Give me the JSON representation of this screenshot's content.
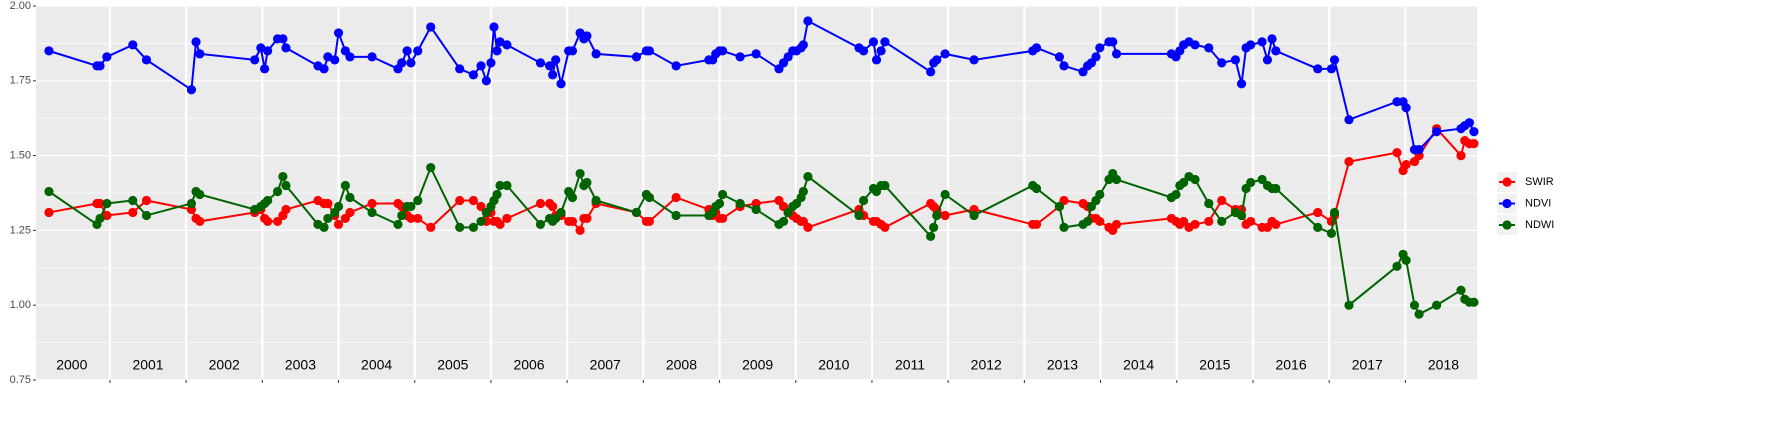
{
  "chart_data": {
    "type": "line",
    "x": [
      2000.2,
      2000.83,
      2000.87,
      2000.96,
      2001.3,
      2001.48,
      2002.07,
      2002.13,
      2002.18,
      2002.9,
      2002.98,
      2003.03,
      2003.07,
      2003.2,
      2003.27,
      2003.31,
      2003.73,
      2003.81,
      2003.86,
      2003.95,
      2004.0,
      2004.09,
      2004.15,
      2004.44,
      2004.78,
      2004.83,
      2004.9,
      2004.95,
      2005.04,
      2005.21,
      2005.59,
      2005.77,
      2005.87,
      2005.94,
      2006.0,
      2006.04,
      2006.08,
      2006.12,
      2006.21,
      2006.65,
      2006.77,
      2006.81,
      2006.85,
      2006.92,
      2007.02,
      2007.07,
      2007.17,
      2007.22,
      2007.26,
      2007.38,
      2007.91,
      2008.04,
      2008.08,
      2008.43,
      2008.86,
      2008.91,
      2008.95,
      2009.0,
      2009.04,
      2009.27,
      2009.48,
      2009.78,
      2009.84,
      2009.9,
      2009.96,
      2010.01,
      2010.07,
      2010.1,
      2010.16,
      2010.83,
      2010.89,
      2011.02,
      2011.06,
      2011.12,
      2011.17,
      2011.77,
      2011.81,
      2011.85,
      2011.96,
      2012.34,
      2013.11,
      2013.16,
      2013.46,
      2013.52,
      2013.77,
      2013.83,
      2013.88,
      2013.94,
      2013.99,
      2014.11,
      2014.16,
      2014.21,
      2014.93,
      2014.99,
      2015.04,
      2015.09,
      2015.16,
      2015.24,
      2015.42,
      2015.59,
      2015.77,
      2015.85,
      2015.91,
      2015.97,
      2016.12,
      2016.19,
      2016.25,
      2016.3,
      2016.85,
      2017.03,
      2017.07,
      2017.26,
      2017.89,
      2017.97,
      2018.01,
      2018.12,
      2018.18,
      2018.41,
      2018.73,
      2018.78,
      2018.84,
      2018.9
    ],
    "series": [
      {
        "name": "SWIR",
        "color": "#ff0000",
        "values": [
          1.31,
          1.34,
          1.34,
          1.3,
          1.31,
          1.35,
          1.32,
          1.29,
          1.28,
          1.31,
          1.32,
          1.29,
          1.28,
          1.28,
          1.3,
          1.32,
          1.35,
          1.34,
          1.34,
          1.3,
          1.27,
          1.29,
          1.31,
          1.34,
          1.34,
          1.33,
          1.3,
          1.29,
          1.29,
          1.26,
          1.35,
          1.35,
          1.33,
          1.28,
          1.31,
          1.28,
          1.28,
          1.27,
          1.29,
          1.34,
          1.34,
          1.33,
          1.3,
          1.3,
          1.28,
          1.28,
          1.25,
          1.29,
          1.29,
          1.34,
          1.31,
          1.28,
          1.28,
          1.36,
          1.32,
          1.3,
          1.31,
          1.29,
          1.29,
          1.33,
          1.34,
          1.35,
          1.33,
          1.31,
          1.3,
          1.29,
          1.28,
          1.28,
          1.26,
          1.32,
          1.3,
          1.28,
          1.28,
          1.27,
          1.26,
          1.34,
          1.33,
          1.32,
          1.3,
          1.32,
          1.27,
          1.27,
          1.33,
          1.35,
          1.34,
          1.33,
          1.29,
          1.29,
          1.28,
          1.26,
          1.25,
          1.27,
          1.29,
          1.28,
          1.27,
          1.28,
          1.26,
          1.27,
          1.28,
          1.35,
          1.32,
          1.32,
          1.27,
          1.28,
          1.26,
          1.26,
          1.28,
          1.27,
          1.31,
          1.28,
          1.3,
          1.48,
          1.51,
          1.45,
          1.47,
          1.48,
          1.5,
          1.59,
          1.5,
          1.55,
          1.54,
          1.54
        ]
      },
      {
        "name": "NDVI",
        "color": "#0000ff",
        "values": [
          1.85,
          1.8,
          1.8,
          1.83,
          1.87,
          1.82,
          1.72,
          1.88,
          1.84,
          1.82,
          1.86,
          1.79,
          1.85,
          1.89,
          1.89,
          1.86,
          1.8,
          1.79,
          1.83,
          1.82,
          1.91,
          1.85,
          1.83,
          1.83,
          1.79,
          1.81,
          1.85,
          1.81,
          1.85,
          1.93,
          1.79,
          1.77,
          1.8,
          1.75,
          1.81,
          1.93,
          1.85,
          1.88,
          1.87,
          1.81,
          1.8,
          1.77,
          1.82,
          1.74,
          1.85,
          1.85,
          1.91,
          1.89,
          1.9,
          1.84,
          1.83,
          1.85,
          1.85,
          1.8,
          1.82,
          1.82,
          1.84,
          1.85,
          1.85,
          1.83,
          1.84,
          1.79,
          1.81,
          1.83,
          1.85,
          1.85,
          1.86,
          1.87,
          1.95,
          1.86,
          1.85,
          1.88,
          1.82,
          1.85,
          1.88,
          1.78,
          1.81,
          1.82,
          1.84,
          1.82,
          1.85,
          1.86,
          1.83,
          1.8,
          1.78,
          1.8,
          1.81,
          1.83,
          1.86,
          1.88,
          1.88,
          1.84,
          1.84,
          1.83,
          1.85,
          1.87,
          1.88,
          1.87,
          1.86,
          1.81,
          1.82,
          1.74,
          1.86,
          1.87,
          1.88,
          1.82,
          1.89,
          1.85,
          1.79,
          1.79,
          1.82,
          1.62,
          1.68,
          1.68,
          1.66,
          1.52,
          1.52,
          1.58,
          1.59,
          1.6,
          1.61,
          1.58
        ]
      },
      {
        "name": "NDWI",
        "color": "#006400",
        "values": [
          1.38,
          1.27,
          1.29,
          1.34,
          1.35,
          1.3,
          1.34,
          1.38,
          1.37,
          1.32,
          1.33,
          1.34,
          1.35,
          1.38,
          1.43,
          1.4,
          1.27,
          1.26,
          1.29,
          1.31,
          1.33,
          1.4,
          1.36,
          1.31,
          1.27,
          1.3,
          1.33,
          1.33,
          1.35,
          1.46,
          1.26,
          1.26,
          1.28,
          1.31,
          1.33,
          1.35,
          1.37,
          1.4,
          1.4,
          1.27,
          1.29,
          1.28,
          1.29,
          1.31,
          1.38,
          1.36,
          1.44,
          1.4,
          1.41,
          1.35,
          1.31,
          1.37,
          1.36,
          1.3,
          1.3,
          1.31,
          1.33,
          1.34,
          1.37,
          1.34,
          1.32,
          1.27,
          1.28,
          1.31,
          1.33,
          1.34,
          1.36,
          1.38,
          1.43,
          1.3,
          1.35,
          1.39,
          1.38,
          1.4,
          1.4,
          1.23,
          1.26,
          1.3,
          1.37,
          1.3,
          1.4,
          1.39,
          1.33,
          1.26,
          1.27,
          1.28,
          1.33,
          1.35,
          1.37,
          1.42,
          1.44,
          1.42,
          1.36,
          1.37,
          1.4,
          1.41,
          1.43,
          1.42,
          1.34,
          1.28,
          1.31,
          1.3,
          1.39,
          1.41,
          1.42,
          1.4,
          1.39,
          1.39,
          1.26,
          1.24,
          1.31,
          1.0,
          1.13,
          1.17,
          1.15,
          1.0,
          0.97,
          1.0,
          1.05,
          1.02,
          1.01,
          1.01
        ]
      }
    ],
    "year_labels": [
      "2000",
      "2001",
      "2002",
      "2003",
      "2004",
      "2005",
      "2006",
      "2007",
      "2008",
      "2009",
      "2010",
      "2011",
      "2012",
      "2013",
      "2014",
      "2015",
      "2016",
      "2017",
      "2018"
    ],
    "xlim": [
      2000.03,
      2018.94
    ],
    "xticks": [
      2001,
      2002,
      2003,
      2004,
      2005,
      2006,
      2007,
      2008,
      2009,
      2010,
      2011,
      2012,
      2013,
      2014,
      2015,
      2016,
      2017,
      2018
    ],
    "ylim": [
      0.75,
      2.0
    ],
    "yticks": [
      0.75,
      {
        "value": 1,
        "label": "1.00"
      },
      1.25,
      {
        "value": 1.5,
        "label": "1.50"
      },
      1.75,
      {
        "value": 2,
        "label": "2.00"
      }
    ],
    "grid": true,
    "legend": "right"
  }
}
